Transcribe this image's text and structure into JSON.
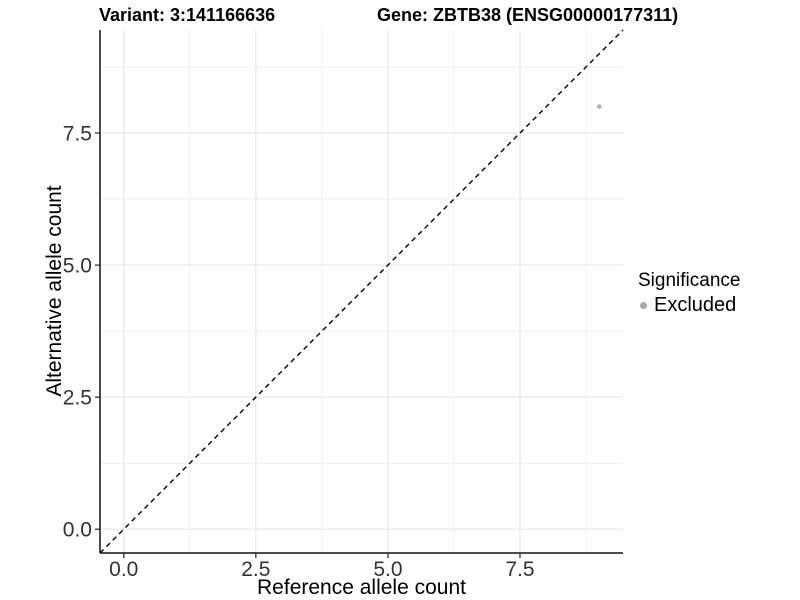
{
  "chart_data": {
    "type": "scatter",
    "titles": {
      "left": "Variant: 3:141166636",
      "right": "Gene: ZBTB38 (ENSG00000177311)"
    },
    "xlabel": "Reference allele count",
    "ylabel": "Alternative allele count",
    "xlim": [
      -0.45,
      9.45
    ],
    "ylim": [
      -0.45,
      9.45
    ],
    "xticks": [
      0,
      2.5,
      5,
      7.5
    ],
    "xtick_labels": [
      "0.0",
      "2.5",
      "5.0",
      "7.5"
    ],
    "yticks": [
      0,
      2.5,
      5,
      7.5
    ],
    "ytick_labels": [
      "0.0",
      "2.5",
      "5.0",
      "7.5"
    ],
    "xminor": [
      1.25,
      3.75,
      6.25,
      8.75
    ],
    "yminor": [
      1.25,
      3.75,
      6.25,
      8.75
    ],
    "grid": true,
    "identity_line": {
      "equation": "y = x",
      "style": "dashed",
      "color": "#000000"
    },
    "series": [
      {
        "name": "Excluded",
        "color": "#b3b3b3",
        "points": [
          {
            "x": 9,
            "y": 8
          }
        ]
      }
    ],
    "legend": {
      "position": "right",
      "title": "Significance",
      "items": [
        {
          "label": "Excluded",
          "color": "#a8a8a8"
        }
      ]
    },
    "colors": {
      "background": "#ffffff",
      "grid_major": "#e6e6e6",
      "grid_minor": "#f0f0f0",
      "axis_line": "#111111",
      "tick_mark": "#222222",
      "tick_label": "#333333",
      "title_text": "#000000"
    }
  }
}
